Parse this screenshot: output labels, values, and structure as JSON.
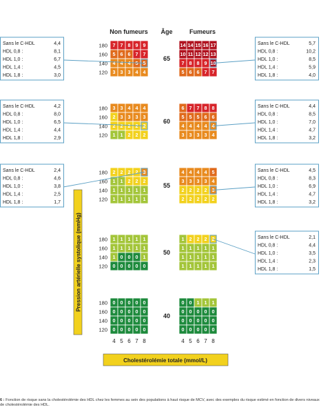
{
  "headers": {
    "left": "Non fumeurs",
    "age": "Âge",
    "right": "Fumeurs"
  },
  "y_axis_label": "Pression artérielle systolique (mmHg)",
  "x_axis_label": "Cholestérolémie totale (mmol/L)",
  "caption": {
    "num": "6 :",
    "text": "Fonction de risque sans la cholestérolémie des HDL chez les femmes au sein des populations à haut risque de MCV, avec des exemples du risque estimé en fonction de divers niveaux de cholestérolémie des HDL."
  },
  "colors": {
    "dkgreen": "#1d8a3c",
    "ltgreen": "#a3c539",
    "yellow": "#f2d11d",
    "orange": "#e88a1e",
    "dkorange": "#e06a1c",
    "red": "#d7242a",
    "dkred": "#b0121f",
    "box_border": "#5a9fc4"
  },
  "chart_data": {
    "type": "heatmap",
    "sex": "women",
    "x_label": "Cholestérolémie totale (mmol/L)",
    "y_label": "Pression artérielle systolique (mmHg)",
    "cholesterol": [
      "4",
      "5",
      "6",
      "7",
      "8"
    ],
    "sbp": [
      "180",
      "160",
      "140",
      "120"
    ],
    "groups": [
      "Non fumeurs",
      "Fumeurs"
    ],
    "ages": [
      {
        "age": "65",
        "non_smokers": [
          [
            7,
            7,
            8,
            9,
            9
          ],
          [
            5,
            6,
            6,
            7,
            7
          ],
          [
            4,
            4,
            4,
            5,
            5
          ],
          [
            3,
            3,
            3,
            4,
            4
          ]
        ],
        "smokers": [
          [
            14,
            14,
            15,
            16,
            17
          ],
          [
            10,
            11,
            12,
            12,
            13
          ],
          [
            7,
            8,
            8,
            9,
            10
          ],
          [
            5,
            6,
            6,
            7,
            7
          ]
        ],
        "hdl_examples": {
          "left": [
            {
              "label": "Sans le C-HDL",
              "value": "4,4"
            },
            {
              "label": "HDL 0,8 :",
              "value": "8,1"
            },
            {
              "label": "HDL 1,0 :",
              "value": "6,7"
            },
            {
              "label": "HDL 1,4 :",
              "value": "4,5"
            },
            {
              "label": "HDL 1,8 :",
              "value": "3,0"
            }
          ],
          "right": [
            {
              "label": "Sans le C-HDL",
              "value": "5,7"
            },
            {
              "label": "HDL 0,8 :",
              "value": "10,2"
            },
            {
              "label": "HDL 1,0 :",
              "value": "8,5"
            },
            {
              "label": "HDL 1,4 :",
              "value": "5,9"
            },
            {
              "label": "HDL 1,8 :",
              "value": "4,0"
            }
          ]
        }
      },
      {
        "age": "60",
        "non_smokers": [
          [
            3,
            3,
            4,
            4,
            4
          ],
          [
            2,
            3,
            3,
            3,
            3
          ],
          [
            2,
            2,
            2,
            2,
            2
          ],
          [
            1,
            1,
            2,
            2,
            2
          ]
        ],
        "smokers": [
          [
            6,
            7,
            7,
            8,
            8
          ],
          [
            5,
            5,
            5,
            6,
            6
          ],
          [
            4,
            4,
            4,
            4,
            4
          ],
          [
            3,
            3,
            3,
            3,
            4
          ]
        ],
        "hdl_examples": {
          "left": [
            {
              "label": "Sans le C-HDL",
              "value": "4,2"
            },
            {
              "label": "HDL 0,8 :",
              "value": "8,0"
            },
            {
              "label": "HDL 1,0 :",
              "value": "6,5"
            },
            {
              "label": "HDL 1,4 :",
              "value": "4,4"
            },
            {
              "label": "HDL 1,8 :",
              "value": "2,9"
            }
          ],
          "right": [
            {
              "label": "Sans le C-HDL",
              "value": "4,4"
            },
            {
              "label": "HDL 0,8 :",
              "value": "8,5"
            },
            {
              "label": "HDL 1,0 :",
              "value": "7,0"
            },
            {
              "label": "HDL 1,4 :",
              "value": "4,7"
            },
            {
              "label": "HDL 1,8 :",
              "value": "3,2"
            }
          ]
        }
      },
      {
        "age": "55",
        "non_smokers": [
          [
            2,
            2,
            2,
            2,
            3
          ],
          [
            1,
            1,
            2,
            2,
            2
          ],
          [
            1,
            1,
            1,
            1,
            1
          ],
          [
            1,
            1,
            1,
            1,
            1
          ]
        ],
        "smokers": [
          [
            4,
            4,
            4,
            4,
            5
          ],
          [
            3,
            3,
            3,
            3,
            4
          ],
          [
            2,
            2,
            2,
            2,
            3
          ],
          [
            2,
            2,
            2,
            2,
            2
          ]
        ],
        "hdl_examples": {
          "left": [
            {
              "label": "Sans le C-HDL",
              "value": "2,4"
            },
            {
              "label": "HDL 0,8 :",
              "value": "4,6"
            },
            {
              "label": "HDL 1,0 :",
              "value": "3,8"
            },
            {
              "label": "HDL 1,4 :",
              "value": "2,5"
            },
            {
              "label": "HDL 1,8 :",
              "value": "1,7"
            }
          ],
          "right": [
            {
              "label": "Sans le C-HDL",
              "value": "4,5"
            },
            {
              "label": "HDL 0,8 :",
              "value": "8,3"
            },
            {
              "label": "HDL 1,0 :",
              "value": "6,9"
            },
            {
              "label": "HDL 1,4 :",
              "value": "4,7"
            },
            {
              "label": "HDL 1,8 :",
              "value": "3,2"
            }
          ]
        }
      },
      {
        "age": "50",
        "non_smokers": [
          [
            1,
            1,
            1,
            1,
            1
          ],
          [
            1,
            1,
            1,
            1,
            1
          ],
          [
            1,
            0,
            0,
            0,
            1
          ],
          [
            0,
            0,
            0,
            0,
            0
          ]
        ],
        "smokers": [
          [
            1,
            2,
            2,
            2,
            2
          ],
          [
            1,
            1,
            1,
            1,
            1
          ],
          [
            1,
            1,
            1,
            1,
            1
          ],
          [
            1,
            1,
            1,
            1,
            1
          ]
        ],
        "hdl_examples": {
          "left": [],
          "right": [
            {
              "label": "Sans le C-HDL",
              "value": "2,1"
            },
            {
              "label": "HDL 0,8 :",
              "value": "4,4"
            },
            {
              "label": "HDL 1,0 :",
              "value": "3,5"
            },
            {
              "label": "HDL 1,4 :",
              "value": "2,3"
            },
            {
              "label": "HDL 1,8 :",
              "value": "1,5"
            }
          ]
        }
      },
      {
        "age": "40",
        "non_smokers": [
          [
            0,
            0,
            0,
            0,
            0
          ],
          [
            0,
            0,
            0,
            0,
            0
          ],
          [
            0,
            0,
            0,
            0,
            0
          ],
          [
            0,
            0,
            0,
            0,
            0
          ]
        ],
        "smokers": [
          [
            0,
            0,
            1,
            1,
            1
          ],
          [
            0,
            0,
            0,
            0,
            0
          ],
          [
            0,
            0,
            0,
            0,
            0
          ],
          [
            0,
            0,
            0,
            0,
            0
          ]
        ],
        "hdl_examples": {
          "left": [],
          "right": []
        }
      }
    ]
  }
}
